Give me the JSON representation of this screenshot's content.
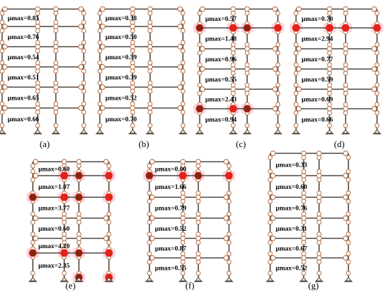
{
  "colors": {
    "frame": "#2b2118",
    "hinge_open_stroke": "#b0683a",
    "hinge_open_fill": "#ffffff",
    "hinge_yield": "#e2231a",
    "hinge_yield_dark": "#7a2a12",
    "hinge_minor": "#c8d23a",
    "glow": "#f6b3c6"
  },
  "panels": [
    {
      "caption": "(a)",
      "mu_labels": [
        "μmax=0.85",
        "μmax=0.76",
        "μmax=0.54",
        "μmax=0.51",
        "μmax=0.65",
        "μmax=0.66"
      ],
      "yield_hinges": []
    },
    {
      "caption": "(b)",
      "mu_labels": [
        "μmax=0.38",
        "μmax=0.50",
        "μmax=0.59",
        "μmax=0.39",
        "μmax=0.52",
        "μmax=0.70"
      ],
      "yield_hinges": []
    },
    {
      "caption": "(c)",
      "mu_labels": [
        "μmax=0.57",
        "μmax=1.48",
        "μmax=0.96",
        "μmax=0.55",
        "μmax=2.43",
        "μmax=0.94"
      ],
      "yield_hinges": [
        [
          1,
          0
        ],
        [
          1,
          1
        ],
        [
          1,
          2
        ],
        [
          1,
          3
        ],
        [
          5,
          0
        ],
        [
          5,
          1
        ],
        [
          5,
          2
        ]
      ]
    },
    {
      "caption": "(d)",
      "mu_labels": [
        "μmax=0.70",
        "μmax=2.94",
        "μmax=0.77",
        "μmax=0.59",
        "μmax=0.69",
        "μmax=0.66"
      ],
      "yield_hinges": [
        [
          1,
          0
        ],
        [
          1,
          1
        ],
        [
          1,
          2
        ],
        [
          1,
          3
        ]
      ]
    },
    {
      "caption": "(e)",
      "mu_labels": [
        "μmax=0.60",
        "μmax=1.07",
        "μmax=3.77",
        "μmax=0.60",
        "μmax=4.20",
        "μmax=2.35"
      ],
      "yield_hinges": [
        [
          1,
          1
        ],
        [
          1,
          2
        ],
        [
          1,
          3
        ],
        [
          2,
          0
        ],
        [
          2,
          1
        ],
        [
          2,
          2
        ],
        [
          2,
          3
        ],
        [
          5,
          0
        ],
        [
          5,
          1
        ],
        [
          5,
          2
        ],
        [
          5,
          3
        ],
        [
          6,
          2
        ],
        [
          6,
          3
        ]
      ]
    },
    {
      "caption": "(f)",
      "mu_labels": [
        "μmax=0.60",
        "μmax=1.66",
        "μmax=0.79",
        "μmax=0.52",
        "μmax=0.87",
        "μmax=0.55"
      ],
      "yield_hinges": [
        [
          1,
          0
        ],
        [
          1,
          1
        ],
        [
          1,
          2
        ],
        [
          1,
          3
        ]
      ]
    },
    {
      "caption": "(g)",
      "mu_labels": [
        "μmax=0.33",
        "μmax=0.60",
        "μmax=0.76",
        "μmax=0.31",
        "μmax=0.67",
        "μmax=0.52"
      ],
      "yield_hinges": []
    }
  ]
}
